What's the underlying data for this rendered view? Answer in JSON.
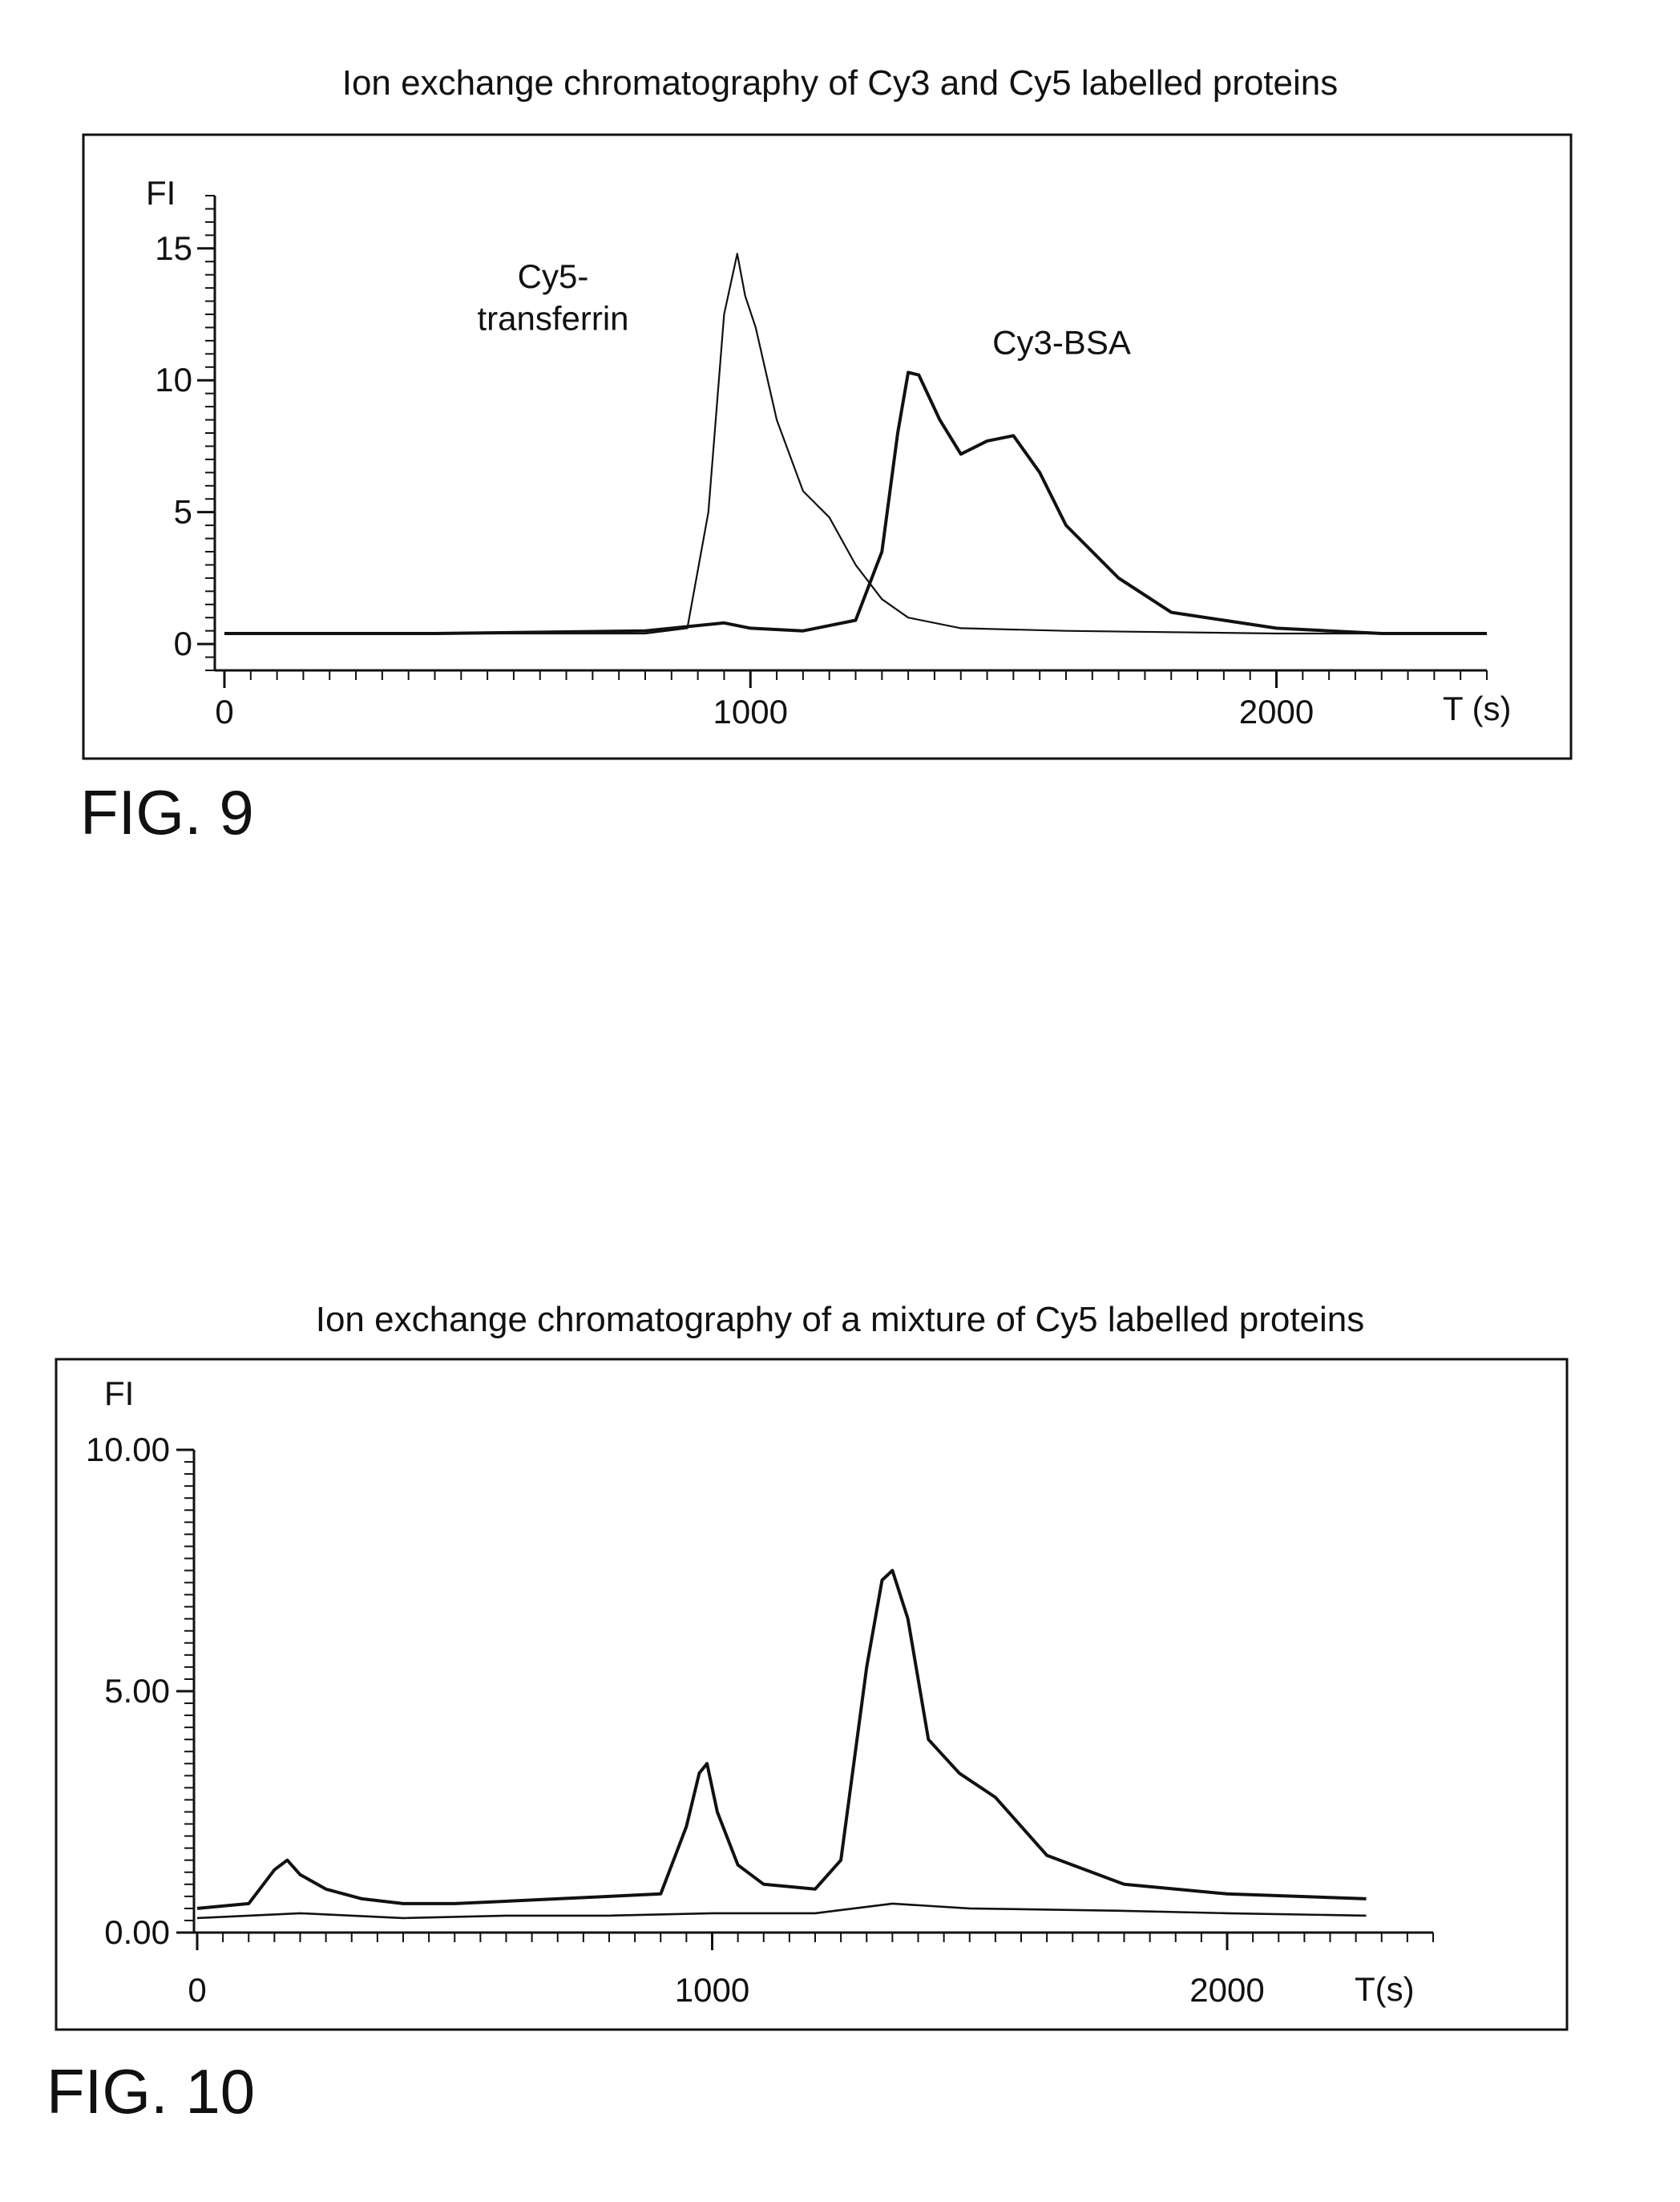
{
  "charts": [
    {
      "figure_label": "FIG. 9",
      "chart_data": {
        "type": "line",
        "title": "Ion exchange chromatography of Cy3 and Cy5 labelled proteins",
        "xlabel": "T (s)",
        "ylabel": "FI",
        "xlim": [
          0,
          2400
        ],
        "ylim": [
          -1,
          17
        ],
        "xticks": [
          0,
          1000,
          2000
        ],
        "xtick_labels": [
          "0",
          "1000",
          "2000"
        ],
        "yticks": [
          0,
          5,
          10,
          15
        ],
        "ytick_labels": [
          "0",
          "5",
          "10",
          "15"
        ],
        "grid": false,
        "series": [
          {
            "x": [
              0,
              200,
              400,
              600,
              800,
              880,
              920,
              950,
              975,
              990,
              1010,
              1050,
              1100,
              1150,
              1200,
              1250,
              1300,
              1400,
              1600,
              2000,
              2400
            ],
            "y": [
              0.4,
              0.4,
              0.4,
              0.4,
              0.4,
              0.6,
              5.0,
              12.5,
              14.8,
              13.2,
              12.0,
              8.5,
              5.8,
              4.8,
              3.0,
              1.7,
              1.0,
              0.6,
              0.5,
              0.4,
              0.4
            ]
          },
          {
            "x": [
              0,
              400,
              800,
              950,
              1000,
              1100,
              1200,
              1250,
              1280,
              1300,
              1320,
              1360,
              1400,
              1450,
              1500,
              1550,
              1600,
              1700,
              1800,
              2000,
              2200,
              2400
            ],
            "y": [
              0.4,
              0.4,
              0.5,
              0.8,
              0.6,
              0.5,
              0.9,
              3.5,
              8.0,
              10.3,
              10.2,
              8.5,
              7.2,
              7.7,
              7.9,
              6.5,
              4.5,
              2.5,
              1.2,
              0.6,
              0.4,
              0.4
            ]
          }
        ],
        "annotations": [
          {
            "text": "Cy5-",
            "x": 960,
            "y": 13.5
          },
          {
            "text": "transferrin",
            "x": 960,
            "y": 11.9
          },
          {
            "text": "Cy3-BSA",
            "x": 1460,
            "y": 11.0
          }
        ]
      }
    },
    {
      "figure_label": "FIG. 10",
      "chart_data": {
        "type": "line",
        "title": "Ion exchange chromatography of a mixture of Cy5 labelled proteins",
        "xlabel": "T(s)",
        "ylabel": "FI",
        "xlim": [
          0,
          2400
        ],
        "ylim": [
          0,
          10
        ],
        "xticks": [
          0,
          1000,
          2000
        ],
        "xtick_labels": [
          "0",
          "1000",
          "2000"
        ],
        "yticks": [
          0,
          5,
          10
        ],
        "ytick_labels": [
          "0.00",
          "5.00",
          "10.00"
        ],
        "grid": false,
        "series": [
          {
            "x": [
              0,
              100,
              150,
              175,
              200,
              250,
              320,
              400,
              500,
              700,
              900,
              950,
              975,
              990,
              1010,
              1050,
              1100,
              1200,
              1250,
              1300,
              1330,
              1350,
              1380,
              1420,
              1480,
              1550,
              1650,
              1800,
              2000,
              2270
            ],
            "y": [
              0.5,
              0.6,
              1.3,
              1.5,
              1.2,
              0.9,
              0.7,
              0.6,
              0.6,
              0.7,
              0.8,
              2.2,
              3.3,
              3.5,
              2.5,
              1.4,
              1.0,
              0.9,
              1.5,
              5.5,
              7.3,
              7.5,
              6.5,
              4.0,
              3.3,
              2.8,
              1.6,
              1.0,
              0.8,
              0.7
            ]
          },
          {
            "x": [
              0,
              200,
              400,
              600,
              800,
              1000,
              1200,
              1350,
              1500,
              1800,
              2000,
              2270
            ],
            "y": [
              0.3,
              0.4,
              0.3,
              0.35,
              0.35,
              0.4,
              0.4,
              0.6,
              0.5,
              0.45,
              0.4,
              0.35
            ]
          }
        ],
        "annotations": []
      }
    }
  ]
}
